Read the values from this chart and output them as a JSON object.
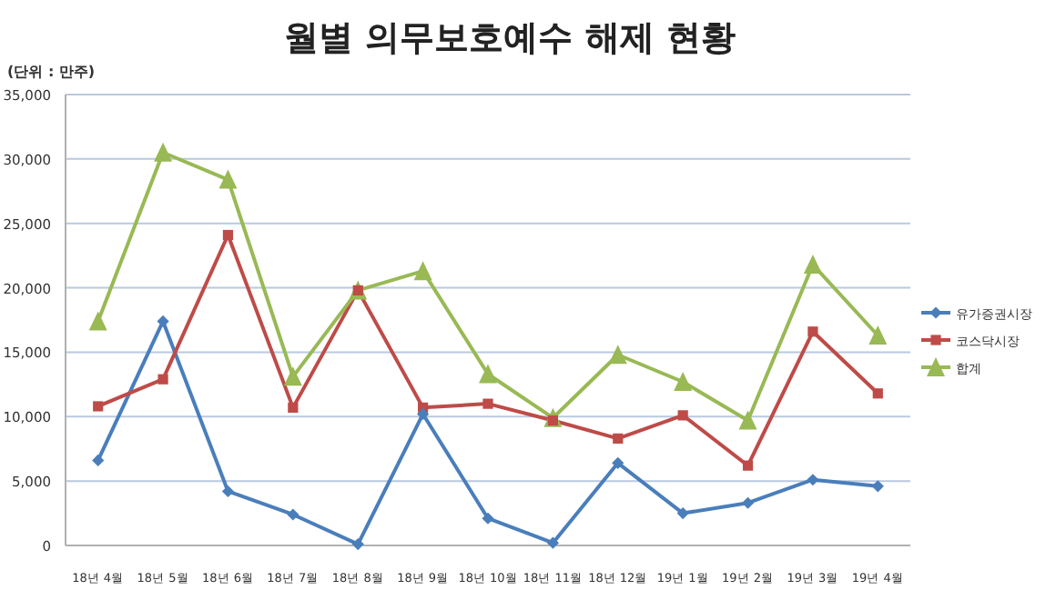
{
  "chart_data": {
    "type": "line",
    "title": "월별 의무보호예수 해제 현황",
    "annotations": [
      "(단위 : 만주)"
    ],
    "categories": [
      "18년 4월",
      "18년 5월",
      "18년 6월",
      "18년 7월",
      "18년 8월",
      "18년 9월",
      "18년 10월",
      "18년 11월",
      "18년 12월",
      "19년 1월",
      "19년 2월",
      "19년 3월",
      "19년 4월"
    ],
    "series": [
      {
        "name": "유가증권시장",
        "color": "#4a7ebb",
        "marker": "diamond",
        "values": [
          6600,
          17400,
          4200,
          2400,
          100,
          10200,
          2100,
          200,
          6400,
          2500,
          3300,
          5100,
          4600
        ]
      },
      {
        "name": "코스닥시장",
        "color": "#be4b48",
        "marker": "square",
        "values": [
          10800,
          12900,
          24100,
          10700,
          19800,
          10700,
          11000,
          9700,
          8300,
          10100,
          6200,
          16600,
          11800
        ]
      },
      {
        "name": "합계",
        "color": "#98b954",
        "marker": "triangle",
        "values": [
          17400,
          30500,
          28400,
          13100,
          19800,
          21300,
          13300,
          9900,
          14800,
          12700,
          9700,
          21800,
          16300
        ]
      }
    ],
    "ylim": [
      0,
      35000
    ],
    "yticks": [
      {
        "value": 0,
        "label": "0"
      },
      {
        "value": 5000,
        "label": "5,000"
      },
      {
        "value": 10000,
        "label": "10,000"
      },
      {
        "value": 15000,
        "label": "15,000"
      },
      {
        "value": 20000,
        "label": "20,000"
      },
      {
        "value": 25000,
        "label": "25,000"
      },
      {
        "value": 30000,
        "label": "30,000"
      },
      {
        "value": 35000,
        "label": "35,000"
      }
    ],
    "grid": "y",
    "legend": "right"
  }
}
